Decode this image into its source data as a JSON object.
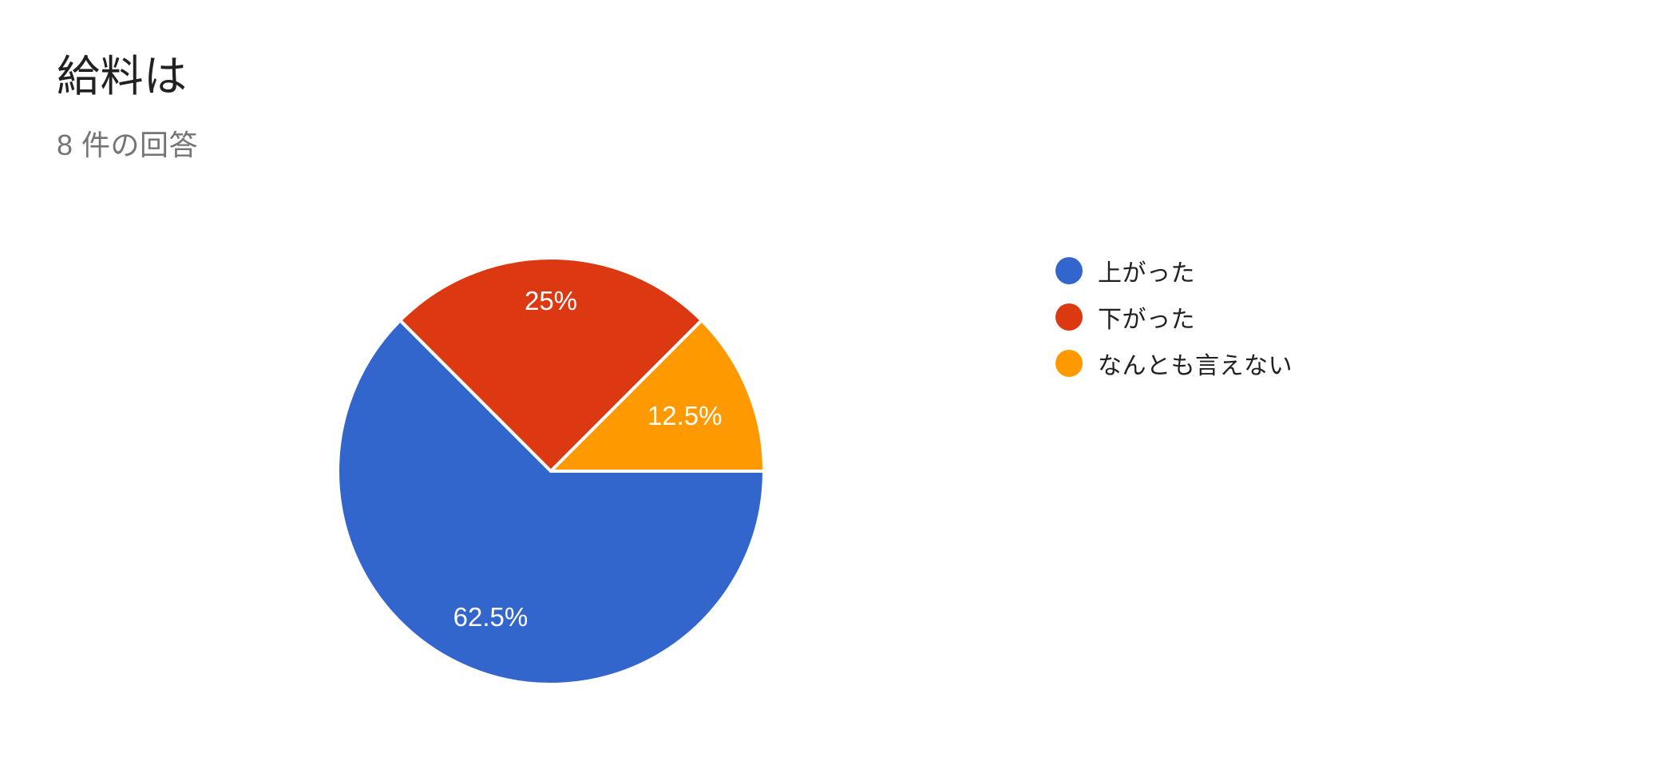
{
  "header": {
    "title": "給料は",
    "subtitle": "8 件の回答"
  },
  "chart_data": {
    "type": "pie",
    "title": "給料は",
    "responses_label": "8 件の回答",
    "responses_count": 8,
    "categories": [
      "上がった",
      "下がった",
      "なんとも言えない"
    ],
    "values_percent": [
      62.5,
      25,
      12.5
    ],
    "percent_labels": [
      "62.5%",
      "25%",
      "12.5%"
    ],
    "colors": [
      "#3366cc",
      "#dc3912",
      "#ff9900"
    ],
    "slice_label_color": "#ffffff",
    "slice_separator_color": "#ffffff",
    "start_angle": "east",
    "direction": "clockwise",
    "legend_position": "right"
  },
  "legend": {
    "items": [
      {
        "label": "上がった",
        "color": "#3366cc"
      },
      {
        "label": "下がった",
        "color": "#dc3912"
      },
      {
        "label": "なんとも言えない",
        "color": "#ff9900"
      }
    ]
  },
  "colors": {
    "background": "#ffffff",
    "title_text": "#212121",
    "subtitle_text": "#757575",
    "legend_text": "#212121"
  }
}
